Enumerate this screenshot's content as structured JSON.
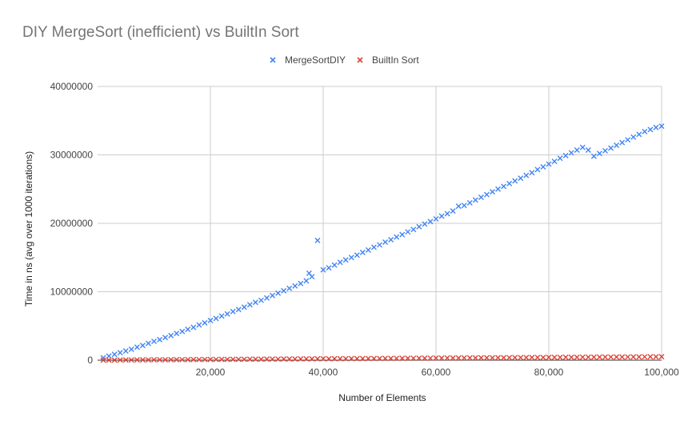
{
  "chart_data": {
    "type": "scatter",
    "title": "DIY MergeSort (inefficient) vs BuiltIn Sort",
    "xlabel": "Number of Elements",
    "ylabel": "Time in ns (avg over 1000 iterations)",
    "xlim": [
      0,
      100000
    ],
    "ylim": [
      0,
      40000000
    ],
    "x_ticks": [
      20000,
      40000,
      60000,
      80000,
      100000
    ],
    "x_tick_labels": [
      "20,000",
      "40,000",
      "60,000",
      "80,000",
      "100,000"
    ],
    "y_ticks": [
      0,
      10000000,
      20000000,
      30000000,
      40000000
    ],
    "y_tick_labels": [
      "0",
      "10000000",
      "20000000",
      "30000000",
      "40000000"
    ],
    "grid": true,
    "legend_position": "top",
    "marker": "×",
    "series": [
      {
        "name": "MergeSortDIY",
        "color": "#4285f4",
        "points": [
          [
            1000,
            350000
          ],
          [
            2000,
            600000
          ],
          [
            3000,
            850000
          ],
          [
            4000,
            1100000
          ],
          [
            5000,
            1350000
          ],
          [
            6000,
            1600000
          ],
          [
            7000,
            1900000
          ],
          [
            8000,
            2150000
          ],
          [
            9000,
            2450000
          ],
          [
            10000,
            2750000
          ],
          [
            11000,
            3000000
          ],
          [
            12000,
            3300000
          ],
          [
            13000,
            3600000
          ],
          [
            14000,
            3900000
          ],
          [
            15000,
            4200000
          ],
          [
            16000,
            4500000
          ],
          [
            17000,
            4800000
          ],
          [
            18000,
            5150000
          ],
          [
            19000,
            5450000
          ],
          [
            20000,
            5800000
          ],
          [
            21000,
            6100000
          ],
          [
            22000,
            6450000
          ],
          [
            23000,
            6750000
          ],
          [
            24000,
            7100000
          ],
          [
            25000,
            7400000
          ],
          [
            26000,
            7750000
          ],
          [
            27000,
            8100000
          ],
          [
            28000,
            8450000
          ],
          [
            29000,
            8750000
          ],
          [
            30000,
            9100000
          ],
          [
            31000,
            9450000
          ],
          [
            32000,
            9800000
          ],
          [
            33000,
            10150000
          ],
          [
            34000,
            10500000
          ],
          [
            35000,
            10850000
          ],
          [
            36000,
            11200000
          ],
          [
            37000,
            11600000
          ],
          [
            37500,
            12700000
          ],
          [
            38000,
            12200000
          ],
          [
            39000,
            17500000
          ],
          [
            40000,
            13200000
          ],
          [
            41000,
            13500000
          ],
          [
            42000,
            13900000
          ],
          [
            43000,
            14300000
          ],
          [
            44000,
            14650000
          ],
          [
            45000,
            15000000
          ],
          [
            46000,
            15350000
          ],
          [
            47000,
            15750000
          ],
          [
            48000,
            16100000
          ],
          [
            49000,
            16500000
          ],
          [
            50000,
            16850000
          ],
          [
            51000,
            17250000
          ],
          [
            52000,
            17600000
          ],
          [
            53000,
            18000000
          ],
          [
            54000,
            18350000
          ],
          [
            55000,
            18750000
          ],
          [
            56000,
            19100000
          ],
          [
            57000,
            19500000
          ],
          [
            58000,
            19900000
          ],
          [
            59000,
            20250000
          ],
          [
            60000,
            20650000
          ],
          [
            61000,
            21050000
          ],
          [
            62000,
            21400000
          ],
          [
            63000,
            21800000
          ],
          [
            64000,
            22500000
          ],
          [
            65000,
            22600000
          ],
          [
            66000,
            23000000
          ],
          [
            67000,
            23400000
          ],
          [
            68000,
            23800000
          ],
          [
            69000,
            24200000
          ],
          [
            70000,
            24600000
          ],
          [
            71000,
            25000000
          ],
          [
            72000,
            25400000
          ],
          [
            73000,
            25800000
          ],
          [
            74000,
            26200000
          ],
          [
            75000,
            26600000
          ],
          [
            76000,
            27000000
          ],
          [
            77000,
            27400000
          ],
          [
            78000,
            27850000
          ],
          [
            79000,
            28250000
          ],
          [
            80000,
            28650000
          ],
          [
            81000,
            29050000
          ],
          [
            82000,
            29500000
          ],
          [
            83000,
            29900000
          ],
          [
            84000,
            30300000
          ],
          [
            85000,
            30700000
          ],
          [
            86000,
            31100000
          ],
          [
            87000,
            30700000
          ],
          [
            88000,
            29800000
          ],
          [
            89000,
            30200000
          ],
          [
            90000,
            30600000
          ],
          [
            91000,
            31000000
          ],
          [
            92000,
            31400000
          ],
          [
            93000,
            31800000
          ],
          [
            94000,
            32200000
          ],
          [
            95000,
            32600000
          ],
          [
            96000,
            33000000
          ],
          [
            97000,
            33400000
          ],
          [
            98000,
            33700000
          ],
          [
            99000,
            34000000
          ],
          [
            100000,
            34200000
          ]
        ]
      },
      {
        "name": "BuiltIn Sort",
        "color": "#db4437",
        "points": [
          [
            1000,
            10000
          ],
          [
            2000,
            15000
          ],
          [
            3000,
            20000
          ],
          [
            4000,
            25000
          ],
          [
            5000,
            30000
          ],
          [
            6000,
            35000
          ],
          [
            7000,
            40000
          ],
          [
            8000,
            45000
          ],
          [
            9000,
            50000
          ],
          [
            10000,
            55000
          ],
          [
            11000,
            60000
          ],
          [
            12000,
            65000
          ],
          [
            13000,
            70000
          ],
          [
            14000,
            75000
          ],
          [
            15000,
            80000
          ],
          [
            16000,
            85000
          ],
          [
            17000,
            90000
          ],
          [
            18000,
            95000
          ],
          [
            19000,
            100000
          ],
          [
            20000,
            105000
          ],
          [
            21000,
            110000
          ],
          [
            22000,
            115000
          ],
          [
            23000,
            120000
          ],
          [
            24000,
            125000
          ],
          [
            25000,
            130000
          ],
          [
            26000,
            135000
          ],
          [
            27000,
            140000
          ],
          [
            28000,
            145000
          ],
          [
            29000,
            150000
          ],
          [
            30000,
            155000
          ],
          [
            31000,
            160000
          ],
          [
            32000,
            165000
          ],
          [
            33000,
            170000
          ],
          [
            34000,
            175000
          ],
          [
            35000,
            180000
          ],
          [
            36000,
            185000
          ],
          [
            37000,
            190000
          ],
          [
            38000,
            195000
          ],
          [
            39000,
            200000
          ],
          [
            40000,
            205000
          ],
          [
            41000,
            210000
          ],
          [
            42000,
            215000
          ],
          [
            43000,
            220000
          ],
          [
            44000,
            225000
          ],
          [
            45000,
            230000
          ],
          [
            46000,
            235000
          ],
          [
            47000,
            240000
          ],
          [
            48000,
            245000
          ],
          [
            49000,
            250000
          ],
          [
            50000,
            255000
          ],
          [
            51000,
            260000
          ],
          [
            52000,
            265000
          ],
          [
            53000,
            270000
          ],
          [
            54000,
            275000
          ],
          [
            55000,
            280000
          ],
          [
            56000,
            285000
          ],
          [
            57000,
            290000
          ],
          [
            58000,
            295000
          ],
          [
            59000,
            300000
          ],
          [
            60000,
            305000
          ],
          [
            61000,
            310000
          ],
          [
            62000,
            315000
          ],
          [
            63000,
            320000
          ],
          [
            64000,
            325000
          ],
          [
            65000,
            330000
          ],
          [
            66000,
            335000
          ],
          [
            67000,
            340000
          ],
          [
            68000,
            345000
          ],
          [
            69000,
            350000
          ],
          [
            70000,
            355000
          ],
          [
            71000,
            360000
          ],
          [
            72000,
            365000
          ],
          [
            73000,
            370000
          ],
          [
            74000,
            375000
          ],
          [
            75000,
            380000
          ],
          [
            76000,
            385000
          ],
          [
            77000,
            390000
          ],
          [
            78000,
            395000
          ],
          [
            79000,
            400000
          ],
          [
            80000,
            405000
          ],
          [
            81000,
            410000
          ],
          [
            82000,
            415000
          ],
          [
            83000,
            420000
          ],
          [
            84000,
            425000
          ],
          [
            85000,
            430000
          ],
          [
            86000,
            435000
          ],
          [
            87000,
            440000
          ],
          [
            88000,
            445000
          ],
          [
            89000,
            450000
          ],
          [
            90000,
            455000
          ],
          [
            91000,
            460000
          ],
          [
            92000,
            465000
          ],
          [
            93000,
            470000
          ],
          [
            94000,
            475000
          ],
          [
            95000,
            480000
          ],
          [
            96000,
            485000
          ],
          [
            97000,
            490000
          ],
          [
            98000,
            495000
          ],
          [
            99000,
            500000
          ],
          [
            100000,
            505000
          ]
        ]
      }
    ]
  }
}
